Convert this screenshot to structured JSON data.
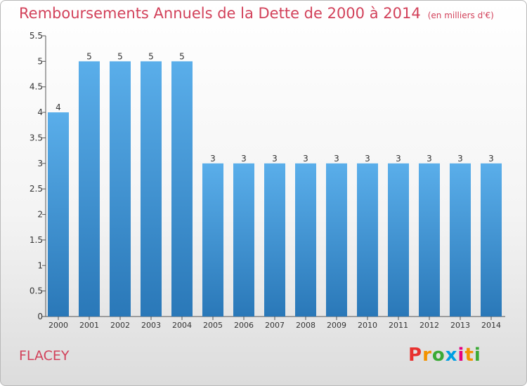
{
  "header": {
    "title": "Remboursements Annuels de la Dette de 2000 à 2014",
    "unit": "(en milliers d'€)"
  },
  "footer": {
    "commune": "FLACEY",
    "logo_letters": [
      "P",
      "r",
      "o",
      "x",
      "i",
      "t",
      "i"
    ],
    "logo_colors": [
      "#e8312f",
      "#f39200",
      "#3aaa35",
      "#009fe3",
      "#e6007e",
      "#f39200",
      "#3aaa35"
    ]
  },
  "colors": {
    "bar_top": "#5aaeea",
    "bar_bottom": "#2a78b8",
    "title": "#d2415a",
    "axis": "#555555"
  },
  "chart_data": {
    "type": "bar",
    "categories": [
      "2000",
      "2001",
      "2002",
      "2003",
      "2004",
      "2005",
      "2006",
      "2007",
      "2008",
      "2009",
      "2010",
      "2011",
      "2012",
      "2013",
      "2014"
    ],
    "values": [
      4,
      5,
      5,
      5,
      5,
      3,
      3,
      3,
      3,
      3,
      3,
      3,
      3,
      3,
      3
    ],
    "ylim": [
      0,
      5.5
    ],
    "yticks": [
      "0",
      "0.5",
      "1",
      "1.5",
      "2",
      "2.5",
      "3",
      "3.5",
      "4",
      "4.5",
      "5",
      "5.5"
    ],
    "grid": false
  }
}
